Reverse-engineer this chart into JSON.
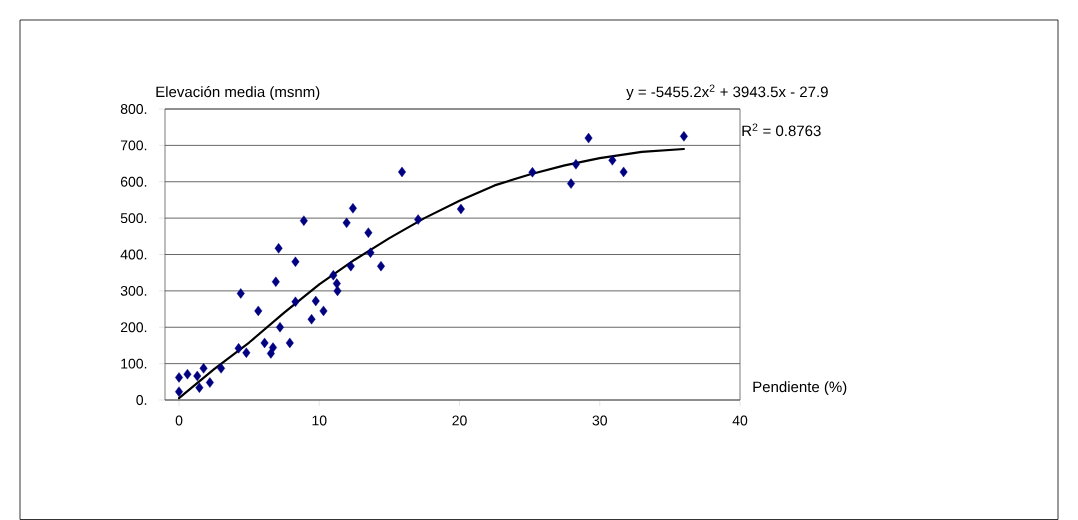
{
  "chart_data": {
    "type": "scatter",
    "xlabel": "Pendiente (%)",
    "ylabel": "Elevación media (msnm)",
    "annotations": [
      "y = -5455.2x$^{2}$ + 3943.5x - 27.9",
      "R$^{2}$ = 0.8763"
    ],
    "xlim": [
      -1,
      40
    ],
    "xticks": [
      0,
      10,
      20,
      30,
      40
    ],
    "ylim": [
      0,
      800
    ],
    "yticks": [
      {
        "value": 0,
        "label": "0."
      },
      {
        "value": 100,
        "label": "100."
      },
      {
        "value": 200,
        "label": "200."
      },
      {
        "value": 300,
        "label": "300."
      },
      {
        "value": 400,
        "label": "400."
      },
      {
        "value": 500,
        "label": "500."
      },
      {
        "value": 600,
        "label": "600."
      },
      {
        "value": 700,
        "label": "700."
      },
      {
        "value": 800,
        "label": "800."
      }
    ],
    "grid": "y",
    "legend": false,
    "series": [
      {
        "marker": "diamond",
        "color": "#000080",
        "x": [
          0,
          0,
          0.6,
          1.45,
          1.75,
          1.3,
          2.2,
          3.0,
          4.4,
          4.25,
          4.8,
          5.65,
          6.1,
          6.55,
          6.7,
          6.9,
          7.1,
          7.2,
          7.9,
          8.3,
          8.3,
          8.9,
          9.45,
          9.75,
          10.3,
          11.0,
          11.25,
          11.3,
          11.95,
          12.4,
          12.25,
          13.5,
          13.65,
          14.4,
          15.9,
          17.05,
          20.1,
          25.2,
          27.95,
          28.3,
          29.2,
          30.9,
          31.7,
          36.0
        ],
        "values": [
          62,
          23,
          71,
          34,
          87,
          66,
          48,
          87,
          293,
          142,
          130,
          245,
          157,
          128,
          144,
          325,
          417,
          200,
          157,
          380,
          270,
          493,
          222,
          272,
          245,
          343,
          320,
          300,
          487,
          527,
          368,
          460,
          405,
          368,
          627,
          496,
          525,
          626,
          595,
          648,
          720,
          659,
          627,
          725
        ]
      },
      {
        "type": "line",
        "marker": "none",
        "color": "#000000",
        "x": [
          0,
          2.5,
          5,
          7.5,
          10,
          12.5,
          15,
          17.5,
          20,
          22.5,
          25,
          27.5,
          30,
          33,
          36
        ],
        "values": [
          5,
          85,
          158,
          240,
          318,
          385,
          445,
          500,
          548,
          590,
          620,
          645,
          665,
          682,
          690
        ]
      }
    ]
  }
}
